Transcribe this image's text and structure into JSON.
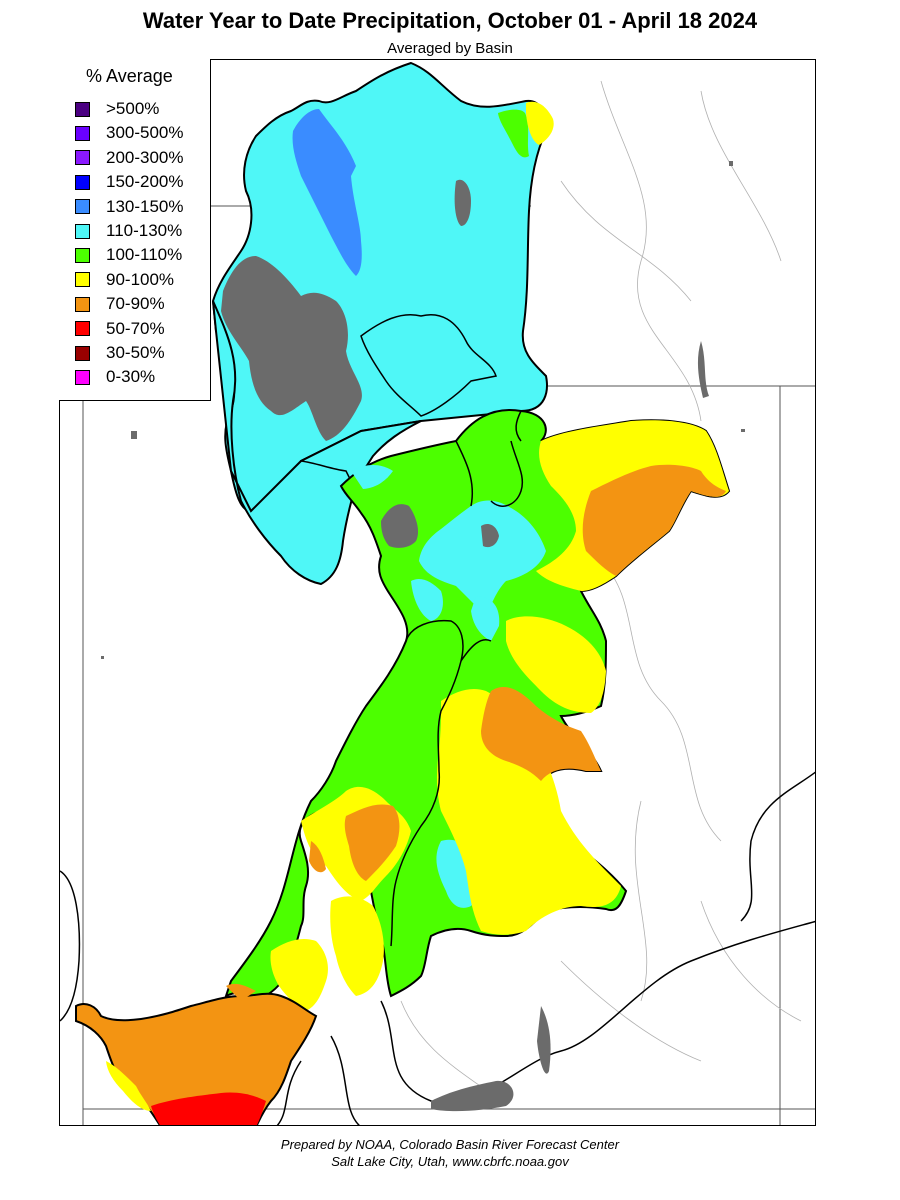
{
  "title": "Water Year to Date Precipitation, October 01  - April 18 2024",
  "subtitle": "Averaged by Basin",
  "legend": {
    "title": "% Average",
    "items": [
      {
        "label": ">500%",
        "color": "#4b0082"
      },
      {
        "label": "300-500%",
        "color": "#6a00ff"
      },
      {
        "label": "200-300%",
        "color": "#8a19ff"
      },
      {
        "label": "150-200%",
        "color": "#0000ff"
      },
      {
        "label": "130-150%",
        "color": "#3a8cff"
      },
      {
        "label": "110-130%",
        "color": "#4ff7f7"
      },
      {
        "label": "100-110%",
        "color": "#4cff00"
      },
      {
        "label": "90-100%",
        "color": "#ffff00"
      },
      {
        "label": "70-90%",
        "color": "#f39412"
      },
      {
        "label": "50-70%",
        "color": "#ff0000"
      },
      {
        "label": "30-50%",
        "color": "#990000"
      },
      {
        "label": "0-30%",
        "color": "#ff00ff"
      }
    ]
  },
  "map_colors": {
    "lake": "#6b6b6b",
    "basin_outline": "#000000",
    "state_line": "#555555",
    "river": "#9a9a9a"
  },
  "footer": {
    "line1": "Prepared by NOAA, Colorado Basin River Forecast Center",
    "line2": "Salt Lake City, Utah, www.cbrfc.noaa.gov"
  }
}
